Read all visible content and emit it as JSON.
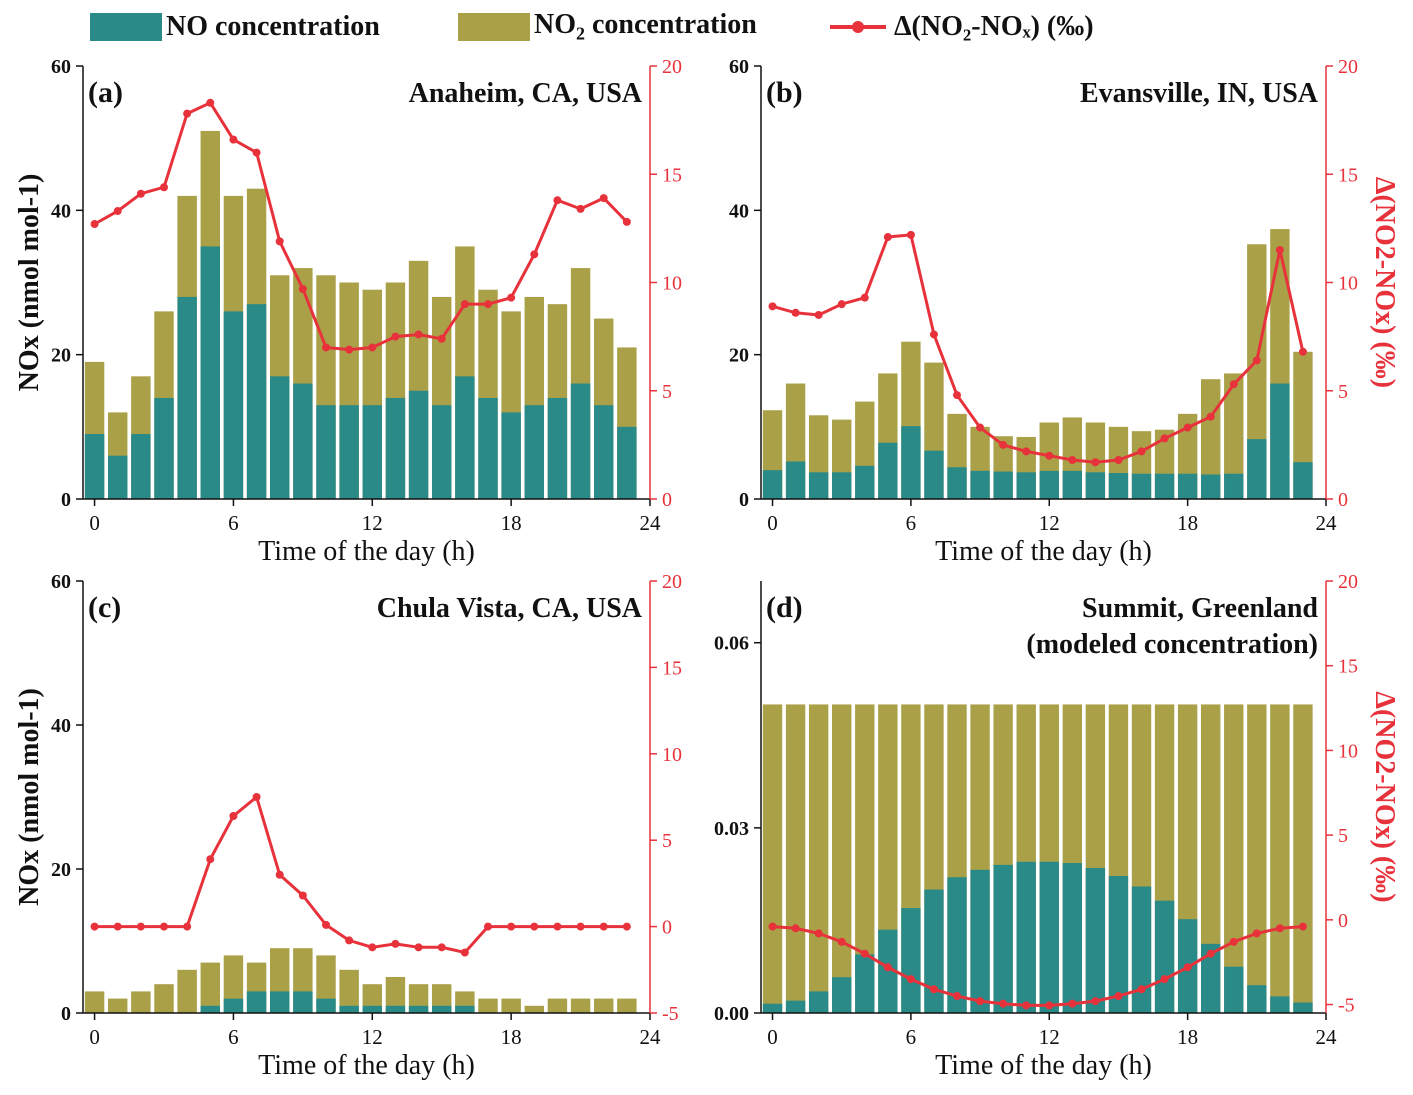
{
  "colors": {
    "no": "#2a8a87",
    "no2": "#a9a047",
    "delta": "#e8323b",
    "axis": "#111111"
  },
  "legend": {
    "no_label": "NO concentration",
    "no2_label_main": "NO",
    "no2_label_sub": "2",
    "no2_label_rest": " concentration",
    "delta_label": "Δ(NO₂-NOₓ) (‰)"
  },
  "chart_data": [
    {
      "type": "bar",
      "panel": "(a)",
      "title": "Anaheim, CA, USA",
      "subtitle": "",
      "xlabel": "Time of the day (h)",
      "ylabel": "NOx (nmol mol-1)",
      "y2label": "",
      "hours": [
        0,
        1,
        2,
        3,
        4,
        5,
        6,
        7,
        8,
        9,
        10,
        11,
        12,
        13,
        14,
        15,
        16,
        17,
        18,
        19,
        20,
        21,
        22,
        23
      ],
      "xticks": [
        0,
        6,
        12,
        18,
        24
      ],
      "xlim": [
        -0.5,
        24
      ],
      "ylim": [
        0,
        60
      ],
      "yticks": [
        0,
        20,
        40,
        60
      ],
      "ytick_labels": [
        "0",
        "20",
        "40",
        "60"
      ],
      "y2lim": [
        0,
        20
      ],
      "y2ticks": [
        0,
        5,
        10,
        15,
        20
      ],
      "y2tick_labels": [
        "0",
        "5",
        "10",
        "15",
        "20"
      ],
      "series": [
        {
          "name": "NO concentration",
          "values": [
            9,
            6,
            9,
            14,
            28,
            35,
            26,
            27,
            17,
            16,
            13,
            13,
            13,
            14,
            15,
            13,
            17,
            14,
            12,
            13,
            14,
            16,
            13,
            10
          ]
        },
        {
          "name": "NO2 concentration (stacked total NOx)",
          "values": [
            19,
            12,
            17,
            26,
            42,
            51,
            42,
            43,
            31,
            32,
            31,
            30,
            29,
            30,
            33,
            28,
            35,
            29,
            26,
            28,
            27,
            32,
            25,
            21
          ]
        },
        {
          "name": "Δ(NO2-NOx) (‰)",
          "values": [
            12.7,
            13.3,
            14.1,
            14.4,
            17.8,
            18.3,
            16.6,
            16.0,
            11.9,
            9.7,
            7.0,
            6.9,
            7.0,
            7.5,
            7.6,
            7.4,
            9.0,
            9.0,
            9.3,
            11.3,
            13.8,
            13.4,
            13.9,
            12.8
          ]
        }
      ]
    },
    {
      "type": "bar",
      "panel": "(b)",
      "title": "Evansville, IN, USA",
      "subtitle": "",
      "xlabel": "Time of the day (h)",
      "ylabel": "",
      "y2label": "Δ(NO2-NOx) (‰)",
      "hours": [
        0,
        1,
        2,
        3,
        4,
        5,
        6,
        7,
        8,
        9,
        10,
        11,
        12,
        13,
        14,
        15,
        16,
        17,
        18,
        19,
        20,
        21,
        22,
        23
      ],
      "xticks": [
        0,
        6,
        12,
        18,
        24
      ],
      "xlim": [
        -0.5,
        24
      ],
      "ylim": [
        0,
        60
      ],
      "yticks": [
        0,
        20,
        40,
        60
      ],
      "ytick_labels": [
        "0",
        "20",
        "40",
        "60"
      ],
      "y2lim": [
        0,
        20
      ],
      "y2ticks": [
        0,
        5,
        10,
        15,
        20
      ],
      "y2tick_labels": [
        "0",
        "5",
        "10",
        "15",
        "20"
      ],
      "series": [
        {
          "name": "NO concentration",
          "values": [
            4,
            5.2,
            3.7,
            3.7,
            4.6,
            7.8,
            10.1,
            6.7,
            4.4,
            3.9,
            3.8,
            3.7,
            3.9,
            3.9,
            3.7,
            3.6,
            3.5,
            3.5,
            3.5,
            3.4,
            3.5,
            8.3,
            16,
            5.1
          ]
        },
        {
          "name": "NO2 concentration (stacked total NOx)",
          "values": [
            12.3,
            16,
            11.6,
            11,
            13.5,
            17.4,
            21.8,
            18.9,
            11.8,
            10,
            8.7,
            8.6,
            10.6,
            11.3,
            10.6,
            10,
            9.4,
            9.6,
            11.8,
            16.6,
            17.4,
            35.3,
            37.4,
            20.4
          ]
        },
        {
          "name": "Δ(NO2-NOx) (‰)",
          "values": [
            8.9,
            8.6,
            8.5,
            9.0,
            9.3,
            12.1,
            12.2,
            7.6,
            4.8,
            3.3,
            2.5,
            2.2,
            2.0,
            1.8,
            1.7,
            1.8,
            2.2,
            2.8,
            3.3,
            3.8,
            5.3,
            6.4,
            11.5,
            6.8
          ]
        }
      ]
    },
    {
      "type": "bar",
      "panel": "(c)",
      "title": "Chula Vista, CA, USA",
      "subtitle": "",
      "xlabel": "Time of the day (h)",
      "ylabel": "NOx (nmol mol-1)",
      "y2label": "",
      "hours": [
        0,
        1,
        2,
        3,
        4,
        5,
        6,
        7,
        8,
        9,
        10,
        11,
        12,
        13,
        14,
        15,
        16,
        17,
        18,
        19,
        20,
        21,
        22,
        23
      ],
      "xticks": [
        0,
        6,
        12,
        18,
        24
      ],
      "xlim": [
        -0.5,
        24
      ],
      "ylim": [
        0,
        60
      ],
      "yticks": [
        0,
        20,
        40,
        60
      ],
      "ytick_labels": [
        "0",
        "20",
        "40",
        "60"
      ],
      "y2lim": [
        -5,
        20
      ],
      "y2ticks": [
        -5,
        0,
        5,
        10,
        15,
        20
      ],
      "y2tick_labels": [
        "-5",
        "0",
        "5",
        "10",
        "15",
        "20"
      ],
      "series": [
        {
          "name": "NO concentration",
          "values": [
            0,
            0,
            0,
            0,
            0,
            1,
            2,
            3,
            3,
            3,
            2,
            1,
            1,
            1,
            1,
            1,
            1,
            0,
            0,
            0,
            0,
            0,
            0,
            0
          ]
        },
        {
          "name": "NO2 concentration (stacked total NOx)",
          "values": [
            3,
            2,
            3,
            4,
            6,
            7,
            8,
            7,
            9,
            9,
            8,
            6,
            4,
            5,
            4,
            4,
            3,
            2,
            2,
            1,
            2,
            2,
            2,
            2
          ]
        },
        {
          "name": "Δ(NO2-NOx) (‰)",
          "values": [
            0,
            0,
            0,
            0,
            0,
            3.9,
            6.4,
            7.5,
            3.0,
            1.8,
            0.1,
            -0.8,
            -1.2,
            -1.0,
            -1.2,
            -1.2,
            -1.5,
            0,
            0,
            0,
            0,
            0,
            0,
            0
          ]
        }
      ]
    },
    {
      "type": "bar",
      "panel": "(d)",
      "title": "Summit, Greenland",
      "subtitle": "(modeled concentration)",
      "xlabel": "Time of the day (h)",
      "ylabel": "",
      "y2label": "Δ(NO2-NOx) (‰)",
      "hours": [
        0,
        1,
        2,
        3,
        4,
        5,
        6,
        7,
        8,
        9,
        10,
        11,
        12,
        13,
        14,
        15,
        16,
        17,
        18,
        19,
        20,
        21,
        22,
        23
      ],
      "xticks": [
        0,
        6,
        12,
        18,
        24
      ],
      "xlim": [
        -0.5,
        24
      ],
      "ylim": [
        0,
        0.07
      ],
      "yticks": [
        0,
        0.03,
        0.06
      ],
      "ytick_labels": [
        "0.00",
        "0.03",
        "0.06"
      ],
      "y2lim": [
        -5.5,
        20
      ],
      "y2ticks": [
        -5,
        0,
        5,
        10,
        15,
        20
      ],
      "y2tick_labels": [
        "-5",
        "0",
        "5",
        "10",
        "15",
        "20"
      ],
      "series": [
        {
          "name": "NO concentration",
          "values": [
            0.0015,
            0.002,
            0.0035,
            0.0058,
            0.0095,
            0.0135,
            0.017,
            0.02,
            0.022,
            0.0232,
            0.024,
            0.0245,
            0.0245,
            0.0243,
            0.0235,
            0.0222,
            0.0205,
            0.0182,
            0.0152,
            0.0112,
            0.0075,
            0.0045,
            0.0027,
            0.0017
          ]
        },
        {
          "name": "NO2 concentration (stacked total NOx)",
          "values": [
            0.05,
            0.05,
            0.05,
            0.05,
            0.05,
            0.05,
            0.05,
            0.05,
            0.05,
            0.05,
            0.05,
            0.05,
            0.05,
            0.05,
            0.05,
            0.05,
            0.05,
            0.05,
            0.05,
            0.05,
            0.05,
            0.05,
            0.05,
            0.05
          ]
        },
        {
          "name": "Δ(NO2-NOx) (‰)",
          "values": [
            -0.4,
            -0.5,
            -0.8,
            -1.3,
            -2.0,
            -2.8,
            -3.5,
            -4.1,
            -4.5,
            -4.8,
            -4.95,
            -5.05,
            -5.05,
            -4.95,
            -4.8,
            -4.5,
            -4.1,
            -3.5,
            -2.8,
            -2.0,
            -1.3,
            -0.8,
            -0.5,
            -0.4
          ]
        }
      ]
    }
  ]
}
